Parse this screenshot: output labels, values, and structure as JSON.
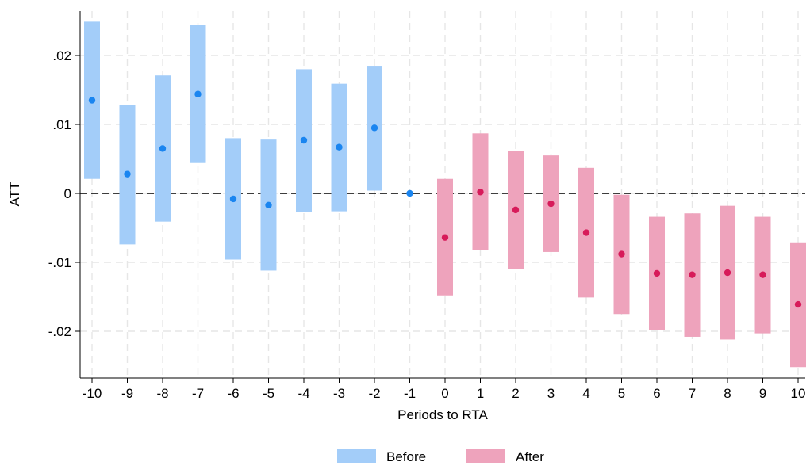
{
  "chart_data": {
    "type": "scatter",
    "subtype": "event-study coefficient plot with confidence interval bars",
    "xlabel": "Periods to RTA",
    "ylabel": "ATT",
    "xlim": [
      -10,
      10
    ],
    "ylim": [
      -0.026,
      0.026
    ],
    "x_ticks": [
      -10,
      -9,
      -8,
      -7,
      -6,
      -5,
      -4,
      -3,
      -2,
      -1,
      0,
      1,
      2,
      3,
      4,
      5,
      6,
      7,
      8,
      9,
      10
    ],
    "x_tick_labels": [
      "-10",
      "-9",
      "-8",
      "-7",
      "-6",
      "-5",
      "-4",
      "-3",
      "-2",
      "-1",
      "0",
      "1",
      "2",
      "3",
      "4",
      "5",
      "6",
      "7",
      "8",
      "9",
      "10"
    ],
    "y_ticks": [
      -0.02,
      -0.01,
      0,
      0.01,
      0.02
    ],
    "y_tick_labels": [
      "-.02",
      "-.01",
      "0",
      ".01",
      ".02"
    ],
    "grid": true,
    "reference_line": 0,
    "legend_position": "bottom",
    "series": [
      {
        "name": "Before",
        "bar_color": "#a3cdf9",
        "point_color": "#1a85f0",
        "x": [
          -10,
          -9,
          -8,
          -7,
          -6,
          -5,
          -4,
          -3,
          -2,
          -1
        ],
        "estimate": [
          0.0135,
          0.0028,
          0.0065,
          0.0144,
          -0.0008,
          -0.0017,
          0.0077,
          0.0067,
          0.0095,
          0.0
        ],
        "ci_lower": [
          0.0021,
          -0.0074,
          -0.0041,
          0.0044,
          -0.0096,
          -0.0112,
          -0.0027,
          -0.0026,
          0.0004,
          null
        ],
        "ci_upper": [
          0.0249,
          0.0128,
          0.0171,
          0.0244,
          0.008,
          0.0078,
          0.018,
          0.0159,
          0.0185,
          null
        ]
      },
      {
        "name": "After",
        "bar_color": "#eea3bc",
        "point_color": "#d71b5a",
        "x": [
          0,
          1,
          2,
          3,
          4,
          5,
          6,
          7,
          8,
          9,
          10
        ],
        "estimate": [
          -0.0064,
          0.0002,
          -0.0024,
          -0.0015,
          -0.0057,
          -0.0088,
          -0.0116,
          -0.0118,
          -0.0115,
          -0.0118,
          -0.0161
        ],
        "ci_lower": [
          -0.0148,
          -0.0082,
          -0.011,
          -0.0085,
          -0.0151,
          -0.0175,
          -0.0198,
          -0.0208,
          -0.0212,
          -0.0203,
          -0.0252
        ],
        "ci_upper": [
          0.0021,
          0.0087,
          0.0062,
          0.0055,
          0.0037,
          -0.0002,
          -0.0034,
          -0.0029,
          -0.0018,
          -0.0034,
          -0.0071
        ]
      }
    ]
  }
}
